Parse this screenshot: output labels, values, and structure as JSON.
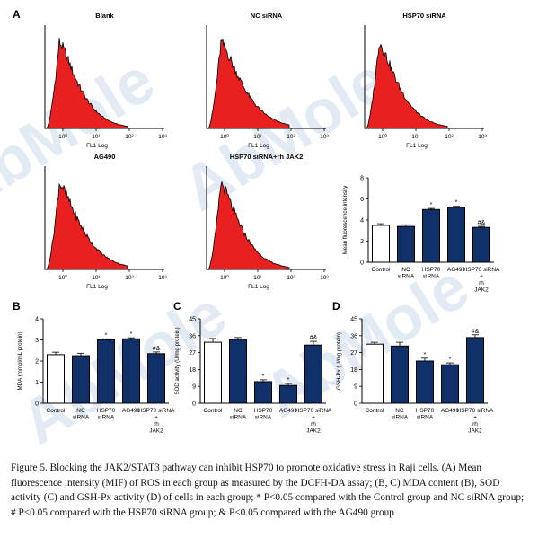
{
  "figure": {
    "panels": {
      "A": "A",
      "B": "B",
      "C": "C",
      "D": "D"
    },
    "watermark": "AbMole",
    "caption": "Figure 5. Blocking the JAK2/STAT3 pathway can inhibit HSP70 to promote oxidative stress in Raji cells. (A) Mean fluorescence intensity  (MIF) of ROS in each group as measured by the DCFH-DA assay; (B, C) MDA content (B), SOD activity (C) and GSH-Px activity  (D) of cells in each group; * P<0.05 compared with the Control group and NC siRNA group; # P<0.05 compared with the  HSP70 siRNA group; & P<0.05 compared with the AG490 group"
  },
  "histograms": [
    {
      "title": "Blank",
      "xlabel": "FL1 Log",
      "ticks": [
        "10⁰",
        "10¹",
        "10²",
        "10³"
      ]
    },
    {
      "title": "NC siRNA",
      "xlabel": "FL1 Log",
      "ticks": [
        "10⁰",
        "10¹",
        "10²",
        "10³"
      ]
    },
    {
      "title": "HSP70 siRNA",
      "xlabel": "FL1 Log",
      "ticks": [
        "10⁰",
        "10¹",
        "10²",
        "10³"
      ]
    },
    {
      "title": "AG490",
      "xlabel": "FL1 Log",
      "ticks": [
        "10⁰",
        "10¹",
        "10²",
        "10³"
      ]
    },
    {
      "title": "HSP70 siRNA+rh JAK2",
      "xlabel": "FL1 Log",
      "ticks": [
        "10⁰",
        "10¹",
        "10²",
        "10³"
      ]
    }
  ],
  "colors": {
    "control": "#ffffff",
    "treated": "#10306a",
    "histogram": "#e82020",
    "axis": "#000000"
  },
  "chart_data": [
    {
      "type": "bar",
      "panel": "A",
      "categories": [
        "Control",
        "NC siRNA",
        "HSP70 siRNA",
        "AG490",
        "HSP70 siRNA + rh JAK2"
      ],
      "values": [
        3.5,
        3.4,
        5.0,
        5.2,
        3.3
      ],
      "errors": [
        0.15,
        0.15,
        0.1,
        0.1,
        0.1
      ],
      "annotations": [
        "",
        "",
        "*",
        "*",
        "#&"
      ],
      "ylabel": "Mean fluorescence intensity",
      "ylim": [
        0,
        8
      ],
      "yticks": [
        0,
        2,
        4,
        6,
        8
      ]
    },
    {
      "type": "bar",
      "panel": "B",
      "categories": [
        "Control",
        "NC siRNA",
        "HSP70 siRNA",
        "AG490",
        "HSP70 siRNA + rh JAK2"
      ],
      "values": [
        2.3,
        2.25,
        3.0,
        3.05,
        2.35
      ],
      "errors": [
        0.12,
        0.12,
        0.05,
        0.05,
        0.08
      ],
      "annotations": [
        "",
        "",
        "*",
        "*",
        "#&"
      ],
      "ylabel": "MDA (mmol/mL protein)",
      "ylim": [
        0,
        4
      ],
      "yticks": [
        0,
        1,
        2,
        3,
        4
      ]
    },
    {
      "type": "bar",
      "panel": "C",
      "categories": [
        "Control",
        "NC siRNA",
        "HSP70 siRNA",
        "AG490",
        "HSP70 siRNA + rh JAK2"
      ],
      "values": [
        32.5,
        34,
        11.5,
        9.5,
        31
      ],
      "errors": [
        2,
        1,
        1,
        1,
        2
      ],
      "annotations": [
        "",
        "",
        "*",
        "*",
        "#&"
      ],
      "ylabel": "SOD activity (U/mg protein)",
      "ylim": [
        0,
        45
      ],
      "yticks": [
        0,
        9,
        18,
        27,
        36,
        45
      ]
    },
    {
      "type": "bar",
      "panel": "D",
      "categories": [
        "Control",
        "NC siRNA",
        "HSP70 siRNA",
        "AG490",
        "HSP70 siRNA + rh JAK2"
      ],
      "values": [
        31.5,
        30.5,
        22.5,
        20.5,
        35
      ],
      "errors": [
        1,
        2,
        1.5,
        1,
        1.5
      ],
      "annotations": [
        "",
        "",
        "*",
        "*",
        "#&"
      ],
      "ylabel": "GSH-Px (U/mg protein)",
      "ylim": [
        0,
        45
      ],
      "yticks": [
        0,
        9,
        18,
        27,
        36,
        45
      ]
    }
  ]
}
